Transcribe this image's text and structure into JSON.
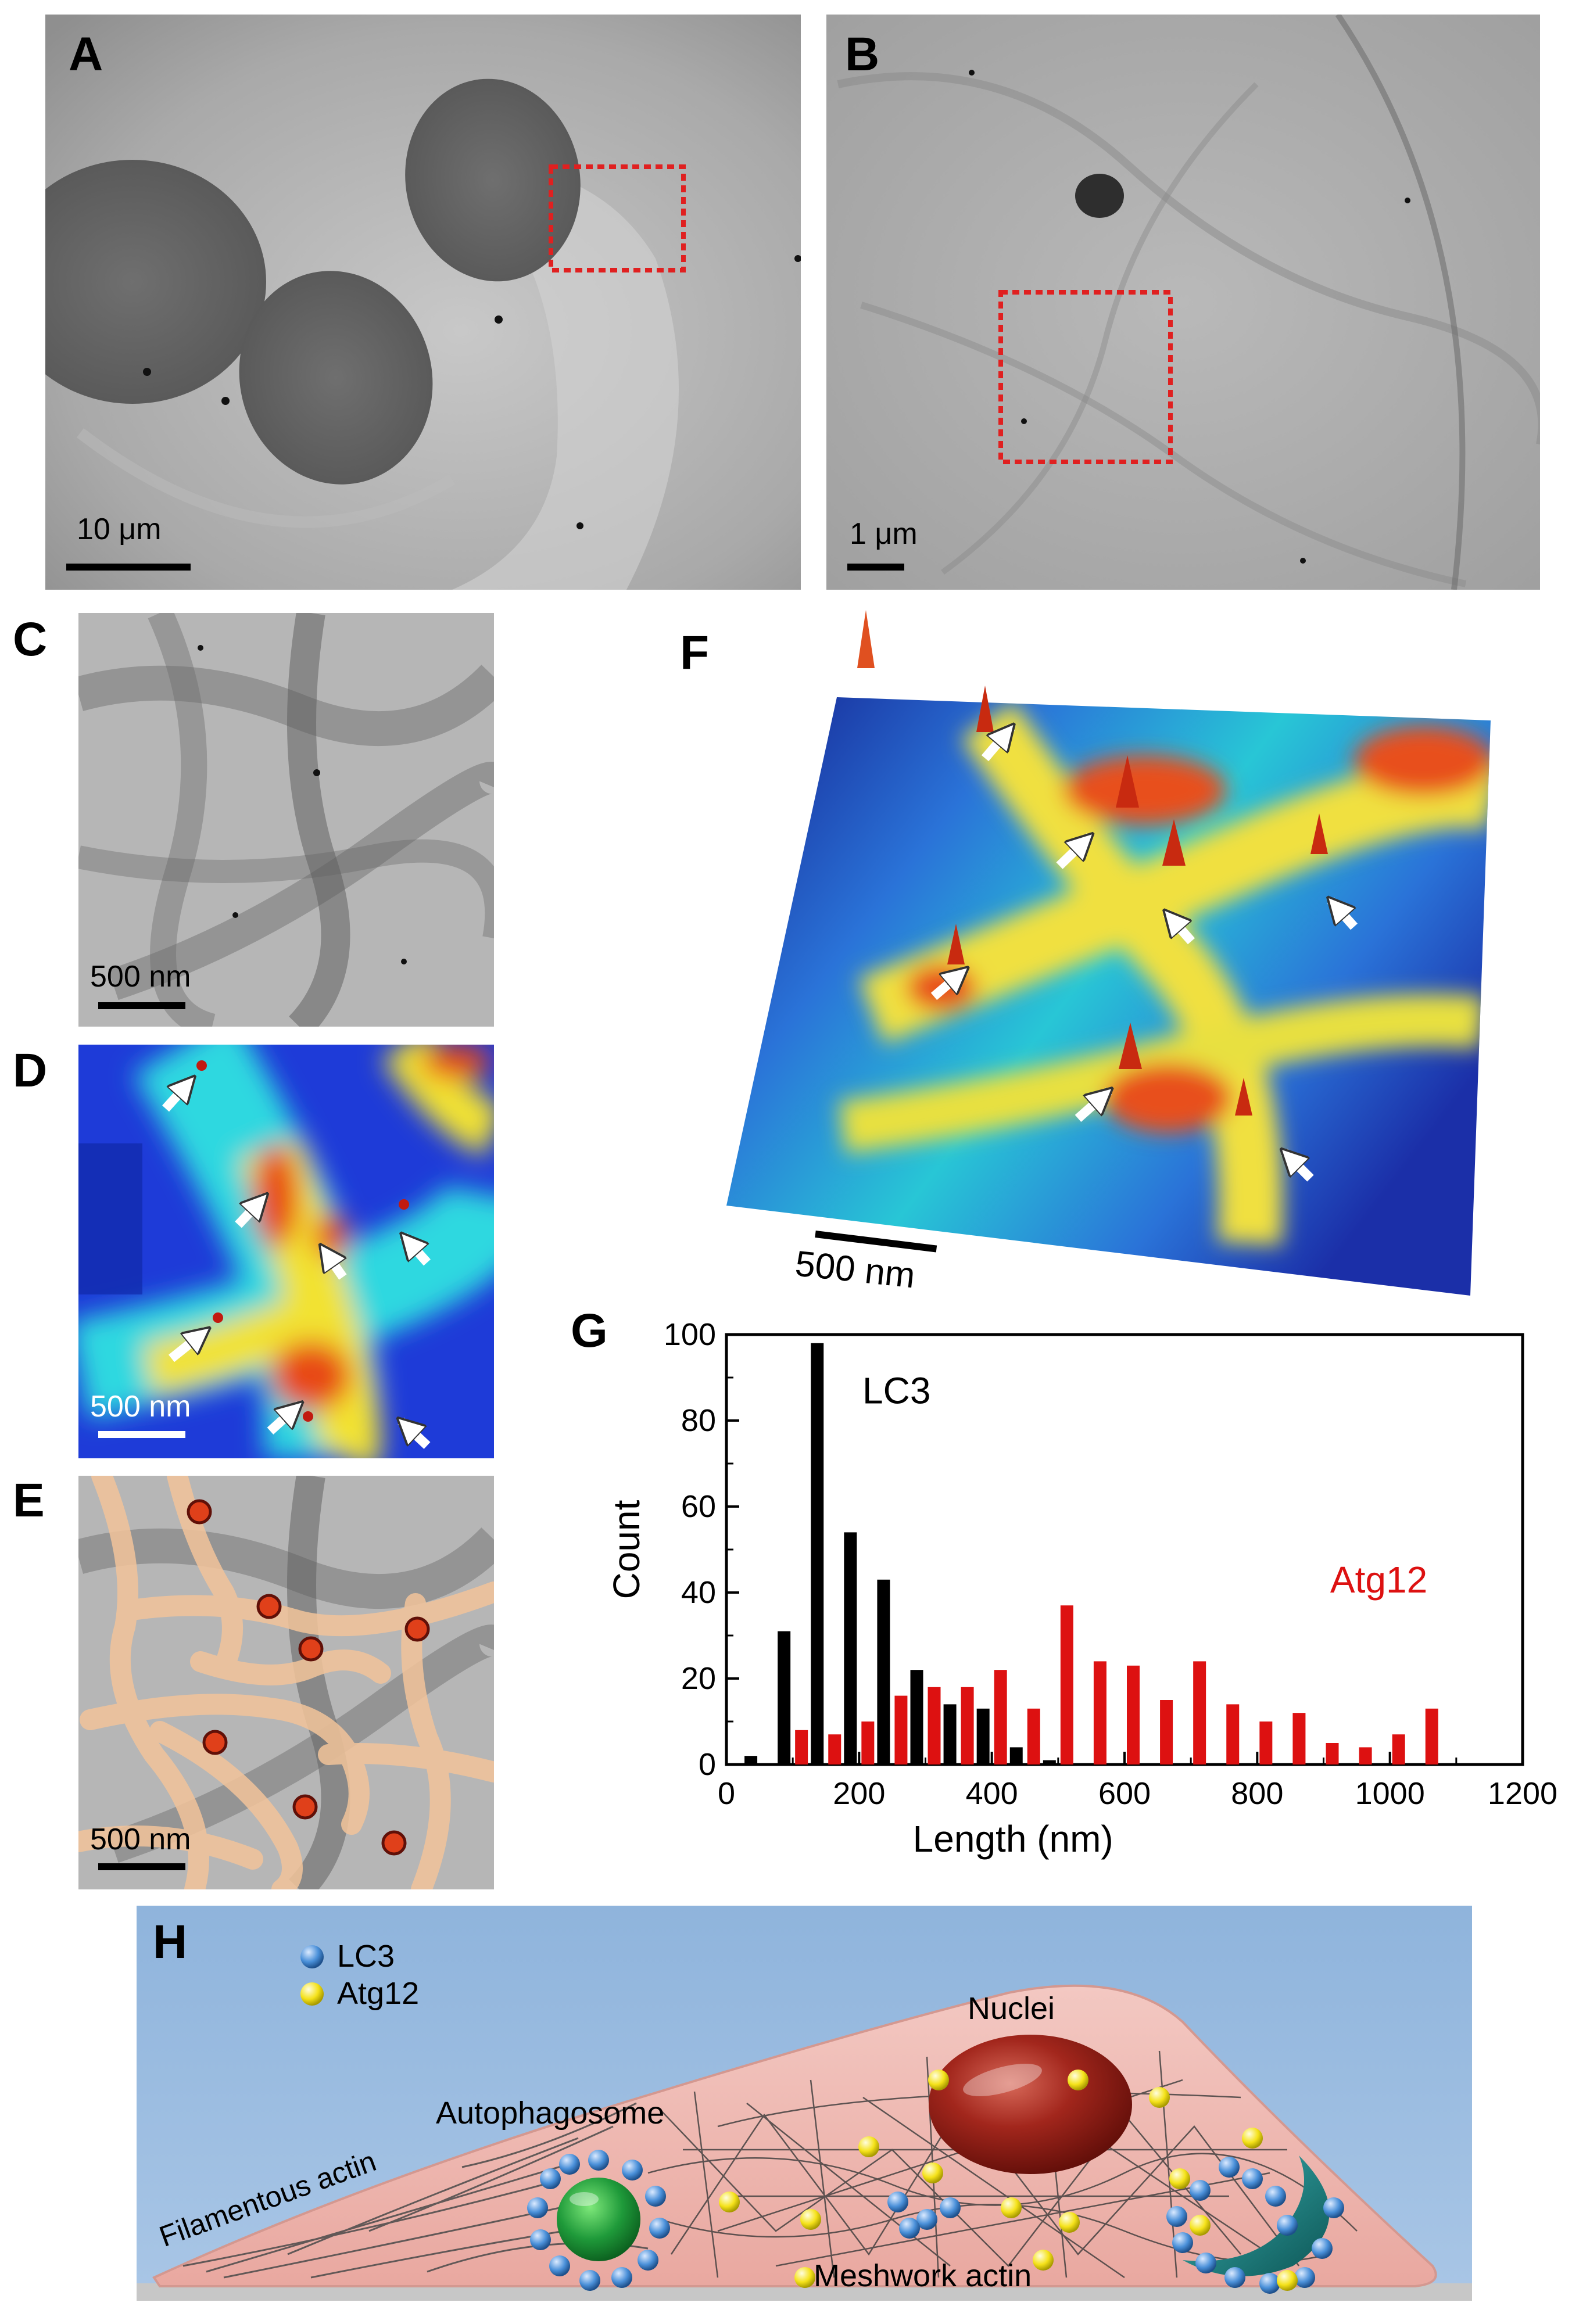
{
  "panels": {
    "A": {
      "label": "A",
      "scalebar": "10 μm"
    },
    "B": {
      "label": "B",
      "scalebar": "1 μm"
    },
    "C": {
      "label": "C",
      "scalebar": "500 nm"
    },
    "D": {
      "label": "D",
      "scalebar": "500 nm"
    },
    "E": {
      "label": "E",
      "scalebar": "500 nm"
    },
    "F": {
      "label": "F",
      "scalebar": "500 nm"
    },
    "G": {
      "label": "G"
    },
    "H": {
      "label": "H"
    }
  },
  "chart_data": {
    "type": "bar",
    "xlabel": "Length (nm)",
    "ylabel": "Count",
    "xlim": [
      0,
      1200
    ],
    "ylim": [
      0,
      100
    ],
    "xticks": [
      "0",
      "200",
      "400",
      "600",
      "800",
      "1000",
      "1200"
    ],
    "yticks": [
      "0",
      "20",
      "40",
      "60",
      "80",
      "100"
    ],
    "series": [
      {
        "name": "LC3",
        "color": "#000000",
        "x": [
          50,
          100,
          150,
          200,
          250,
          300,
          350,
          400,
          450,
          500
        ],
        "values": [
          2,
          31,
          98,
          54,
          43,
          22,
          14,
          13,
          4,
          1
        ]
      },
      {
        "name": "Atg12",
        "color": "#dd1111",
        "x": [
          100,
          150,
          200,
          250,
          300,
          350,
          400,
          450,
          500,
          550,
          600,
          650,
          700,
          750,
          800,
          850,
          900,
          950,
          1000,
          1050
        ],
        "values": [
          8,
          7,
          10,
          16,
          18,
          18,
          22,
          13,
          37,
          24,
          23,
          15,
          24,
          14,
          10,
          12,
          5,
          4,
          7,
          13
        ]
      }
    ]
  },
  "schematic": {
    "legend": [
      {
        "label": "LC3",
        "color": "#4a90d9"
      },
      {
        "label": "Atg12",
        "color": "#f5e21a"
      }
    ],
    "labels": {
      "nuclei": "Nuclei",
      "autophagosome": "Autophagosome",
      "filamentous_actin": "Filamentous actin",
      "meshwork_actin": "Meshwork actin"
    }
  }
}
